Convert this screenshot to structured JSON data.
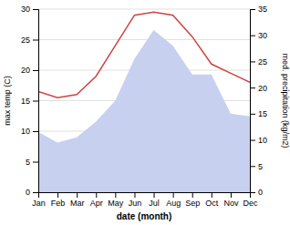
{
  "chart_data": {
    "type": "line",
    "xlabel": "date (month)",
    "ylabel": "max temp (C)",
    "y2label": "med. precipitation (kg/m2)",
    "categories": [
      "Jan",
      "Feb",
      "Mar",
      "Apr",
      "May",
      "Jun",
      "Jul",
      "Aug",
      "Sep",
      "Oct",
      "Nov",
      "Dec"
    ],
    "series": [
      {
        "type": "area",
        "color": "#c8d0f0",
        "axis": "y2",
        "values": [
          11.5,
          9.5,
          10.5,
          13.5,
          17.5,
          25.5,
          31.0,
          28.0,
          22.5,
          22.5,
          15.0,
          14.5
        ]
      },
      {
        "type": "line",
        "color": "#cc4444",
        "values": [
          16.5,
          15.5,
          16.0,
          19.0,
          24.0,
          29.0,
          29.5,
          29.0,
          25.5,
          21.0,
          19.5,
          18.0
        ]
      }
    ],
    "ylim": [
      0,
      30
    ],
    "yticks": [
      0,
      5,
      10,
      15,
      20,
      25,
      30
    ],
    "y2lim": [
      0,
      35
    ],
    "y2ticks": [
      0,
      5,
      10,
      15,
      20,
      25,
      30,
      35
    ],
    "grid": true
  }
}
